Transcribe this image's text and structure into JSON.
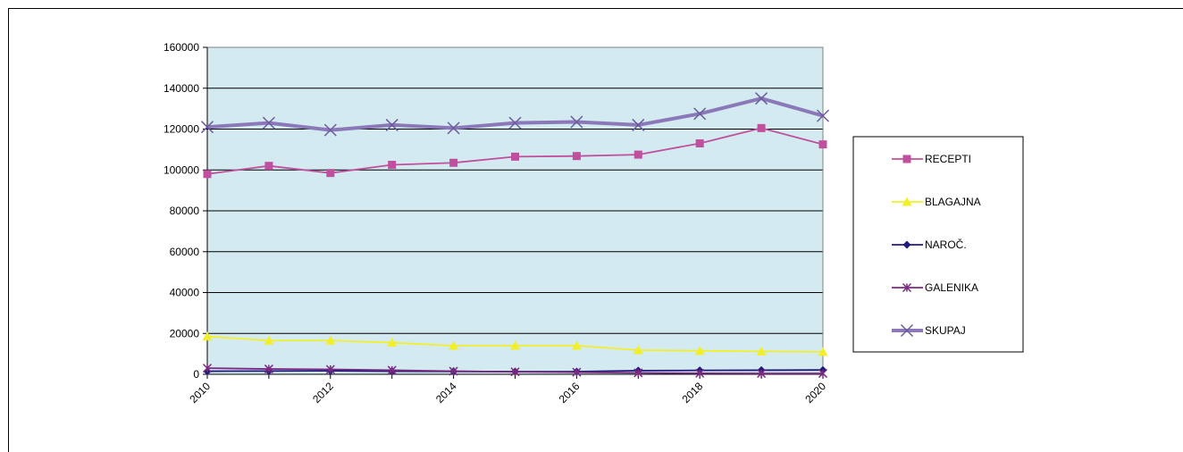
{
  "chart_data": {
    "type": "line",
    "title": "",
    "xlabel": "",
    "ylabel": "",
    "ylim": [
      0,
      160000
    ],
    "y_ticks": [
      0,
      20000,
      40000,
      60000,
      80000,
      100000,
      120000,
      140000,
      160000
    ],
    "y_tick_labels": [
      "0",
      "20000",
      "40000",
      "60000",
      "80000",
      "100000",
      "120000",
      "140000",
      "160000"
    ],
    "x": [
      2010,
      2011,
      2012,
      2013,
      2014,
      2015,
      2016,
      2017,
      2018,
      2019,
      2020
    ],
    "x_tick_labels": [
      "2010",
      "2012",
      "2014",
      "2016",
      "2018",
      "2020"
    ],
    "x_tick_values": [
      2010,
      2012,
      2014,
      2016,
      2018,
      2020
    ],
    "grid": true,
    "plot_background": "#d3ebf0",
    "legend_position": "right",
    "series": [
      {
        "name": "RECEPTI",
        "color": "#c0509e",
        "marker": "square",
        "values": [
          98000,
          102000,
          98500,
          102500,
          103500,
          106500,
          106800,
          107500,
          113000,
          120500,
          112500
        ]
      },
      {
        "name": "BLAGAJNA",
        "color": "#f2ef2a",
        "marker": "triangle",
        "values": [
          18500,
          16500,
          16500,
          15500,
          14000,
          14000,
          14000,
          11800,
          11500,
          11200,
          11000
        ]
      },
      {
        "name": "NAROČ.",
        "color": "#1f1a7a",
        "marker": "diamond",
        "values": [
          1500,
          1600,
          1700,
          1500,
          1400,
          1300,
          1300,
          1800,
          1900,
          2000,
          2100
        ]
      },
      {
        "name": "GALENIKA",
        "color": "#7a2a80",
        "marker": "asterisk",
        "values": [
          3000,
          2600,
          2400,
          2000,
          1500,
          1200,
          1000,
          700,
          500,
          400,
          400
        ]
      },
      {
        "name": "SKUPAJ",
        "color": "#8a78b8",
        "marker": "x",
        "thick": true,
        "values": [
          121000,
          123000,
          119500,
          122000,
          120500,
          123000,
          123500,
          122000,
          127500,
          135000,
          126500
        ]
      }
    ]
  }
}
